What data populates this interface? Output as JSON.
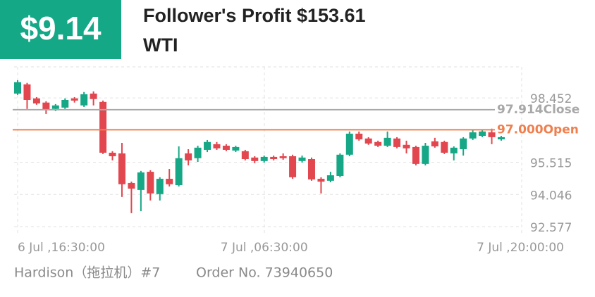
{
  "header": {
    "amount": "$9.14",
    "title": "Follower's Profit $153.61",
    "symbol": "WTI"
  },
  "chart_data": {
    "type": "candlestick",
    "categories": [
      "6 Jul ,16:30:00",
      null,
      null,
      null,
      null,
      null,
      null,
      null,
      null,
      null,
      null,
      null,
      null,
      null,
      null,
      null,
      null,
      null,
      null,
      null,
      null,
      null,
      null,
      null,
      null,
      null,
      "7 Jul ,06:30:00",
      null,
      null,
      null,
      null,
      null,
      null,
      null,
      null,
      null,
      null,
      null,
      null,
      null,
      null,
      null,
      null,
      null,
      null,
      null,
      null,
      null,
      null,
      null,
      null,
      "7 Jul ,20:00:00"
    ],
    "open": [
      98.65,
      99.07,
      98.43,
      98.24,
      97.95,
      98.01,
      98.43,
      98.11,
      98.65,
      98.27,
      95.95,
      95.92,
      94.57,
      94.25,
      95.08,
      94.06,
      94.76,
      94.47,
      95.92,
      95.7,
      96.08,
      96.34,
      96.27,
      96.05,
      96.02,
      95.73,
      95.57,
      95.76,
      95.79,
      95.79,
      95.57,
      95.66,
      94.76,
      94.67,
      94.89,
      95.86,
      96.82,
      96.6,
      96.44,
      96.27,
      96.6,
      96.31,
      96.21,
      95.44,
      96.47,
      96.44,
      95.92,
      96.11,
      96.6,
      96.72,
      96.88,
      96.56
    ],
    "high": [
      99.26,
      99.14,
      98.49,
      98.3,
      98.17,
      98.43,
      98.49,
      98.72,
      98.75,
      98.33,
      96.02,
      96.4,
      94.63,
      95.12,
      95.15,
      94.83,
      95.21,
      96.24,
      96.11,
      96.27,
      96.53,
      96.44,
      96.34,
      96.27,
      96.08,
      95.79,
      95.82,
      95.82,
      95.92,
      95.86,
      95.82,
      95.73,
      94.83,
      95.08,
      95.92,
      96.92,
      96.92,
      96.66,
      96.5,
      96.92,
      96.66,
      96.5,
      96.27,
      96.4,
      96.63,
      96.5,
      96.24,
      96.66,
      96.98,
      96.98,
      97.05,
      96.72
    ],
    "low": [
      98.59,
      97.95,
      98.14,
      97.72,
      97.85,
      97.95,
      98.24,
      98.04,
      98.11,
      95.89,
      95.6,
      93.93,
      93.19,
      93.28,
      93.77,
      93.77,
      94.41,
      94.41,
      95.37,
      95.53,
      95.98,
      96.08,
      96.02,
      95.98,
      95.6,
      95.47,
      95.5,
      95.6,
      95.63,
      94.76,
      95.5,
      94.67,
      94.09,
      94.6,
      94.83,
      95.79,
      96.5,
      96.31,
      96.21,
      96.21,
      96.15,
      95.92,
      95.37,
      95.37,
      96.18,
      95.89,
      95.6,
      95.82,
      96.53,
      96.66,
      96.34,
      96.5
    ],
    "close": [
      99.17,
      98.36,
      98.2,
      97.91,
      98.11,
      98.36,
      98.33,
      98.62,
      98.4,
      95.95,
      95.79,
      94.51,
      94.31,
      95.05,
      94.09,
      94.76,
      94.51,
      95.7,
      95.6,
      96.18,
      96.44,
      96.15,
      96.08,
      96.21,
      95.66,
      95.57,
      95.76,
      95.66,
      95.7,
      94.83,
      95.73,
      94.73,
      94.63,
      94.92,
      95.86,
      96.82,
      96.56,
      96.37,
      96.27,
      96.63,
      96.21,
      96.15,
      95.44,
      96.27,
      96.24,
      95.95,
      96.18,
      96.6,
      96.88,
      96.92,
      96.66,
      96.66
    ],
    "up_color": "#16a886",
    "down_color": "#e2474f",
    "ylim": [
      92.48,
      99.87
    ],
    "yticks": [
      92.577,
      94.046,
      95.515,
      98.452
    ],
    "grid": true,
    "reference_lines": [
      {
        "value": 97.914,
        "label": "Close",
        "color": "#a8a8a8"
      },
      {
        "value": 97.0,
        "value_label": "97.000",
        "label": "Open",
        "color": "#f07f4e"
      }
    ]
  },
  "footer": {
    "trader": "Hardison（拖拉机）#7",
    "order": "Order No. 73940650"
  }
}
